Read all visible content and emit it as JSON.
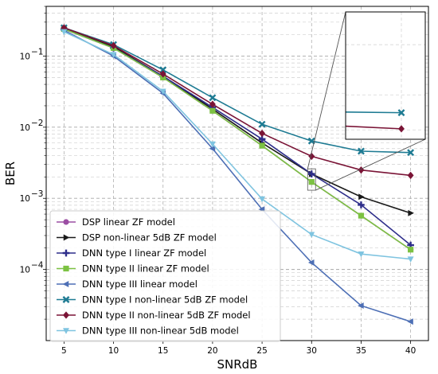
{
  "chart_data": {
    "type": "line",
    "xlabel": "SNRdB",
    "ylabel": "BER",
    "x": [
      5,
      10,
      15,
      20,
      25,
      30,
      35,
      40
    ],
    "xticks": [
      "5",
      "10",
      "15",
      "20",
      "25",
      "30",
      "35",
      "40"
    ],
    "yscale": "log",
    "ylim": [
      1e-05,
      0.5
    ],
    "yticks": [
      {
        "value": 0.0001,
        "base": "10",
        "exp": "−4"
      },
      {
        "value": 0.001,
        "base": "10",
        "exp": "−3"
      },
      {
        "value": 0.01,
        "base": "10",
        "exp": "−2"
      },
      {
        "value": 0.1,
        "base": "10",
        "exp": "−1"
      }
    ],
    "grid": true,
    "legend_position": "lower-left",
    "inset": {
      "x_range": [
        36.5,
        41.5
      ],
      "y_range": [
        0.0013,
        0.45
      ],
      "placement": "top-right"
    },
    "series": [
      {
        "name": "DSP linear ZF model",
        "color": "#9b4ea3",
        "marker": "circle",
        "values": [
          0.24,
          0.13,
          0.05,
          0.017,
          0.0055,
          0.0017,
          0.00057,
          0.00019
        ]
      },
      {
        "name": "DSP non-linear 5dB ZF model",
        "color": "#1a1a1a",
        "marker": "triangle-right",
        "values": [
          0.25,
          0.135,
          0.052,
          0.018,
          0.006,
          0.0022,
          0.00105,
          0.00062
        ]
      },
      {
        "name": "DNN type I linear ZF model",
        "color": "#2d2d8a",
        "marker": "plus",
        "values": [
          0.24,
          0.13,
          0.052,
          0.019,
          0.0068,
          0.0022,
          0.00081,
          0.00022
        ]
      },
      {
        "name": "DNN type II linear ZF model",
        "color": "#7cc242",
        "marker": "square",
        "values": [
          0.24,
          0.13,
          0.05,
          0.017,
          0.0055,
          0.0017,
          0.00057,
          0.00019
        ]
      },
      {
        "name": "DNN type III linear model",
        "color": "#4d6fb5",
        "marker": "triangle-left",
        "values": [
          0.23,
          0.1,
          0.03,
          0.005,
          0.0007,
          0.000125,
          3.1e-05,
          1.85e-05
        ]
      },
      {
        "name": "DNN type I non-linear 5dB ZF model",
        "color": "#1e7b93",
        "marker": "x",
        "values": [
          0.25,
          0.145,
          0.064,
          0.026,
          0.011,
          0.0064,
          0.0046,
          0.0044
        ]
      },
      {
        "name": "DNN type II non-linear 5dB ZF model",
        "color": "#7a1436",
        "marker": "diamond",
        "values": [
          0.25,
          0.14,
          0.056,
          0.021,
          0.0082,
          0.0039,
          0.0025,
          0.0021
        ]
      },
      {
        "name": "DNN type III non-linear 5dB model",
        "color": "#7fc4e0",
        "marker": "triangle-down",
        "values": [
          0.22,
          0.105,
          0.032,
          0.0058,
          0.00098,
          0.00031,
          0.000165,
          0.00014
        ]
      }
    ]
  }
}
